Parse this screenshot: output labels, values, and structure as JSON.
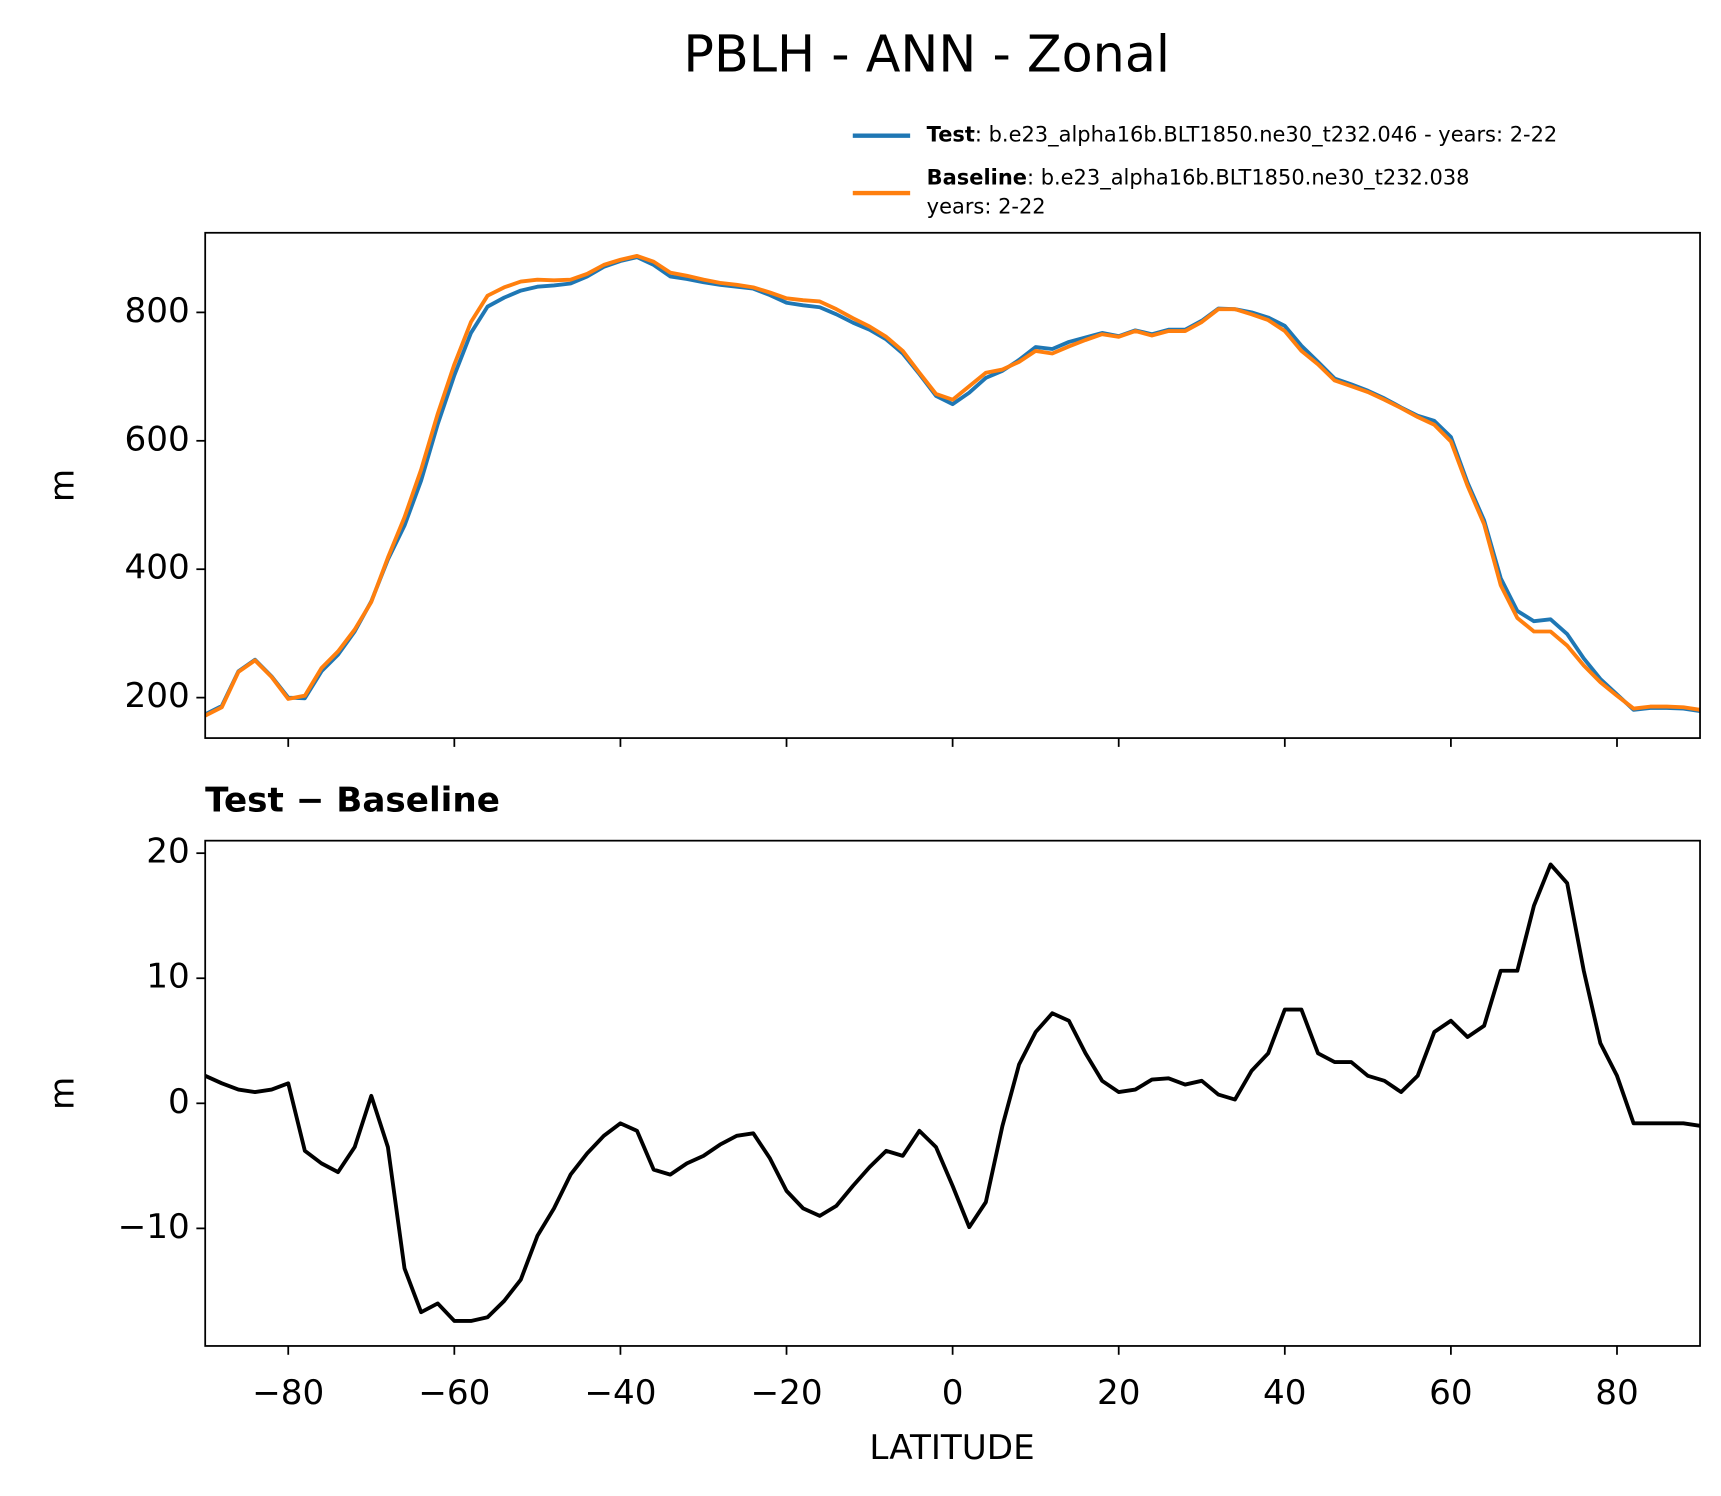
{
  "chart_data": [
    {
      "type": "line",
      "title": "PBLH - ANN - Zonal",
      "ylabel": "m",
      "x": [
        -90,
        -88,
        -86,
        -84,
        -82,
        -80,
        -78,
        -76,
        -74,
        -72,
        -70,
        -68,
        -66,
        -64,
        -62,
        -60,
        -58,
        -56,
        -54,
        -52,
        -50,
        -48,
        -46,
        -44,
        -42,
        -40,
        -38,
        -36,
        -34,
        -32,
        -30,
        -28,
        -26,
        -24,
        -22,
        -20,
        -18,
        -16,
        -14,
        -12,
        -10,
        -8,
        -6,
        -4,
        -2,
        0,
        2,
        4,
        6,
        8,
        10,
        12,
        14,
        16,
        18,
        20,
        22,
        24,
        26,
        28,
        30,
        32,
        34,
        36,
        38,
        40,
        42,
        44,
        46,
        48,
        50,
        52,
        54,
        56,
        58,
        60,
        62,
        64,
        66,
        68,
        70,
        72,
        74,
        76,
        78,
        80,
        82,
        84,
        86,
        88,
        90
      ],
      "series": [
        {
          "name": "Test",
          "label": [
            ": b.e23_alpha16b.BLT1850.ne30_t232.046 - years: 2-22"
          ],
          "color": "#1f77b4",
          "values": [
            174,
            187,
            241,
            259,
            233,
            200,
            199,
            241,
            267,
            303,
            350,
            415,
            468,
            538,
            626,
            702,
            768,
            809,
            823,
            834,
            840,
            842,
            845,
            856,
            871,
            880,
            886,
            874,
            856,
            852,
            847,
            843,
            840,
            837,
            827,
            815,
            811,
            808,
            797,
            784,
            773,
            758,
            736,
            704,
            670,
            657,
            675,
            698,
            709,
            726,
            746,
            743,
            754,
            761,
            768,
            763,
            772,
            766,
            773,
            773,
            787,
            806,
            805,
            800,
            792,
            779,
            748,
            723,
            697,
            688,
            678,
            666,
            652,
            639,
            631,
            606,
            535,
            476,
            386,
            335,
            319,
            322,
            299,
            261,
            229,
            205,
            181,
            184,
            184,
            183,
            179
          ]
        },
        {
          "name": "Baseline",
          "label": [
            ": b.e23_alpha16b.BLT1850.ne30_t232.038",
            "years: 2-22"
          ],
          "color": "#ff7f0e",
          "values": [
            172,
            185,
            240,
            258,
            232,
            198,
            203,
            246,
            272,
            306,
            349,
            418,
            481,
            555,
            642,
            719,
            785,
            826,
            839,
            848,
            851,
            850,
            851,
            860,
            874,
            882,
            888,
            879,
            862,
            857,
            851,
            846,
            843,
            839,
            831,
            822,
            819,
            817,
            805,
            791,
            778,
            762,
            740,
            706,
            673,
            664,
            685,
            706,
            711,
            723,
            740,
            736,
            747,
            757,
            766,
            762,
            771,
            764,
            771,
            771,
            785,
            805,
            805,
            797,
            788,
            771,
            740,
            719,
            694,
            685,
            676,
            664,
            651,
            637,
            625,
            599,
            530,
            470,
            375,
            324,
            303,
            303,
            281,
            250,
            224,
            203,
            183,
            186,
            186,
            185,
            181
          ]
        }
      ],
      "xlim": [
        -90,
        90
      ],
      "xticks": [
        -80,
        -60,
        -40,
        -20,
        0,
        20,
        40,
        60,
        80
      ],
      "ylim": [
        137,
        924
      ],
      "yticks": [
        200,
        400,
        600,
        800
      ]
    },
    {
      "type": "line",
      "title": "Test − Baseline",
      "xlabel": "LATITUDE",
      "ylabel": "m",
      "x": [
        -90,
        -88,
        -86,
        -84,
        -82,
        -80,
        -78,
        -76,
        -74,
        -72,
        -70,
        -68,
        -66,
        -64,
        -62,
        -60,
        -58,
        -56,
        -54,
        -52,
        -50,
        -48,
        -46,
        -44,
        -42,
        -40,
        -38,
        -36,
        -34,
        -32,
        -30,
        -28,
        -26,
        -24,
        -22,
        -20,
        -18,
        -16,
        -14,
        -12,
        -10,
        -8,
        -6,
        -4,
        -2,
        0,
        2,
        4,
        6,
        8,
        10,
        12,
        14,
        16,
        18,
        20,
        22,
        24,
        26,
        28,
        30,
        32,
        34,
        36,
        38,
        40,
        42,
        44,
        46,
        48,
        50,
        52,
        54,
        56,
        58,
        60,
        62,
        64,
        66,
        68,
        70,
        72,
        74,
        76,
        78,
        80,
        82,
        84,
        86,
        88,
        90
      ],
      "series": [
        {
          "color": "#000000",
          "values": [
            2.2,
            1.6,
            1.1,
            0.9,
            1.1,
            1.6,
            -3.8,
            -4.8,
            -5.5,
            -3.5,
            0.6,
            -3.5,
            -13.2,
            -16.7,
            -16.0,
            -17.4,
            -17.4,
            -17.1,
            -15.8,
            -14.1,
            -10.6,
            -8.4,
            -5.7,
            -4.0,
            -2.6,
            -1.6,
            -2.2,
            -5.3,
            -5.7,
            -4.8,
            -4.2,
            -3.3,
            -2.6,
            -2.4,
            -4.4,
            -7.0,
            -8.4,
            -9.0,
            -8.2,
            -6.6,
            -5.1,
            -3.8,
            -4.2,
            -2.2,
            -3.5,
            -6.6,
            -9.9,
            -7.9,
            -1.8,
            3.1,
            5.7,
            7.2,
            6.6,
            4.0,
            1.8,
            0.9,
            1.1,
            1.9,
            2.0,
            1.5,
            1.8,
            0.7,
            0.3,
            2.6,
            4.0,
            7.5,
            7.5,
            4.0,
            3.3,
            3.3,
            2.2,
            1.8,
            0.9,
            2.2,
            5.7,
            6.6,
            5.3,
            6.2,
            10.6,
            10.6,
            15.8,
            19.1,
            17.6,
            10.6,
            4.8,
            2.2,
            -1.6,
            -1.6,
            -1.6,
            -1.6,
            -1.8
          ]
        }
      ],
      "xlim": [
        -90,
        90
      ],
      "xticks": [
        {
          "value": -80,
          "label": "−80"
        },
        {
          "value": -60,
          "label": "−60"
        },
        {
          "value": -40,
          "label": "−40"
        },
        {
          "value": -20,
          "label": "−20"
        },
        0,
        20,
        40,
        60,
        80
      ],
      "ylim": [
        -19.4,
        21.0
      ],
      "yticks": [
        {
          "value": -10,
          "label": "−10"
        },
        0,
        10,
        20
      ]
    }
  ]
}
